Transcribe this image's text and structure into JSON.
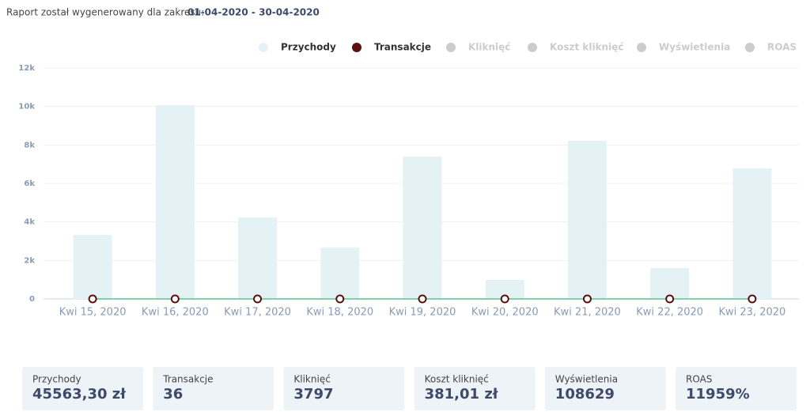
{
  "header": {
    "prefix": "Raport został wygenerowany dla zakresu:",
    "range": "01-04-2020 - 30-04-2020"
  },
  "chart_data": {
    "type": "bar",
    "categories": [
      "Kwi 15, 2020",
      "Kwi 16, 2020",
      "Kwi 17, 2020",
      "Kwi 18, 2020",
      "Kwi 19, 2020",
      "Kwi 20, 2020",
      "Kwi 21, 2020",
      "Kwi 22, 2020",
      "Kwi 23, 2020"
    ],
    "series": [
      {
        "name": "Przychody",
        "type": "bar",
        "color": "#e4f2f6",
        "visible": true,
        "values": [
          3330,
          10070,
          4230,
          2670,
          7400,
          990,
          8220,
          1600,
          6780
        ]
      },
      {
        "name": "Transakcje",
        "type": "line",
        "color": "#5c0f0f",
        "line_color": "#7fd1a8",
        "visible": true,
        "values": [
          0,
          0,
          0,
          0,
          0,
          0,
          0,
          0,
          0
        ]
      },
      {
        "name": "Kliknięć",
        "color": "#cccccc",
        "visible": false
      },
      {
        "name": "Koszt kliknięć",
        "color": "#cccccc",
        "visible": false
      },
      {
        "name": "Wyświetlenia",
        "color": "#cccccc",
        "visible": false
      },
      {
        "name": "ROAS",
        "color": "#cccccc",
        "visible": false
      }
    ],
    "ylim": [
      0,
      12000
    ],
    "yticks": [
      0,
      {
        "value": 2000,
        "label": "2k"
      },
      {
        "value": 4000,
        "label": "4k"
      },
      {
        "value": 6000,
        "label": "6k"
      },
      {
        "value": 8000,
        "label": "8k"
      },
      {
        "value": 10000,
        "label": "10k"
      },
      {
        "value": 12000,
        "label": "12k"
      }
    ],
    "grid": true
  },
  "summary": [
    {
      "label": "Przychody",
      "value": "45563,30 zł"
    },
    {
      "label": "Transakcje",
      "value": "36"
    },
    {
      "label": "Kliknięć",
      "value": "3797"
    },
    {
      "label": "Koszt kliknięć",
      "value": "381,01 zł"
    },
    {
      "label": "Wyświetlenia",
      "value": "108629"
    },
    {
      "label": "ROAS",
      "value": "11959%"
    }
  ]
}
